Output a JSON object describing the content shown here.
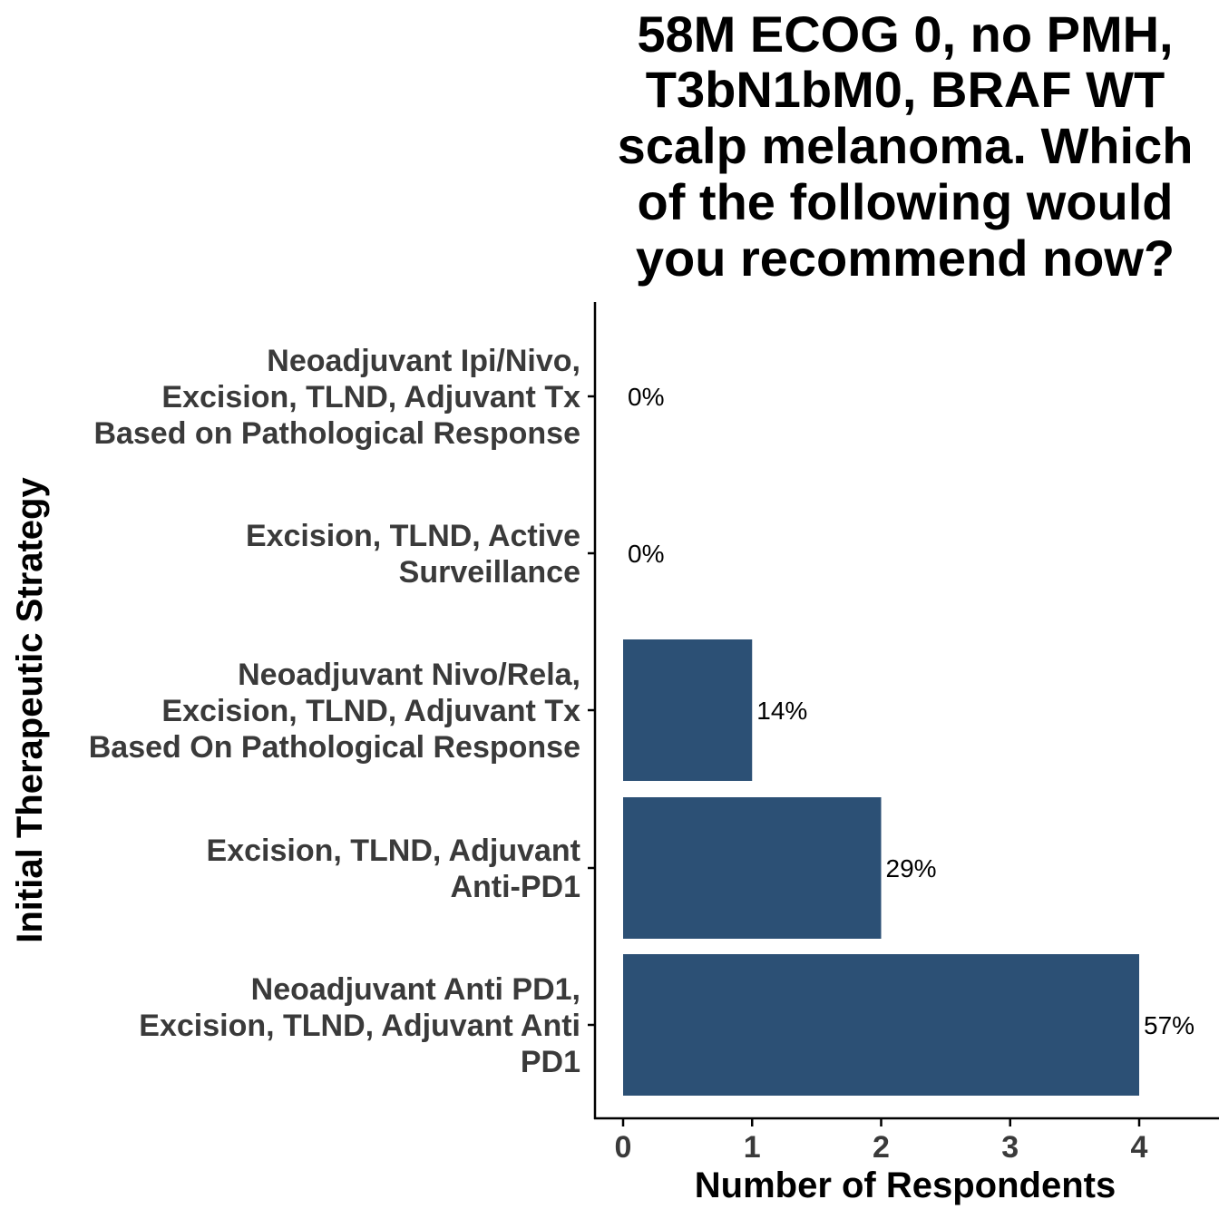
{
  "chart_data": {
    "type": "bar",
    "orientation": "horizontal",
    "title_lines": [
      "58M ECOG 0, no PMH,",
      "T3bN1bM0, BRAF WT",
      "scalp melanoma. Which",
      "of the following would",
      "you recommend now?"
    ],
    "xlabel": "Number of Respondents",
    "ylabel": "Initial Therapeutic Strategy",
    "xlim": [
      0,
      4.6
    ],
    "xticks": [
      "0",
      "1",
      "2",
      "3",
      "4"
    ],
    "categories": [
      [
        "Neoadjuvant Ipi/Nivo,",
        "Excision, TLND, Adjuvant Tx",
        "Based on Pathological Response"
      ],
      [
        "Excision, TLND, Active",
        "Surveillance"
      ],
      [
        "Neoadjuvant Nivo/Rela,",
        "Excision, TLND, Adjuvant Tx",
        "Based On Pathological Response"
      ],
      [
        "Excision, TLND, Adjuvant",
        "Anti-PD1"
      ],
      [
        "Neoadjuvant Anti PD1,",
        "Excision, TLND, Adjuvant Anti",
        "PD1"
      ]
    ],
    "values": [
      0,
      0,
      1,
      2,
      4
    ],
    "labels": [
      "0%",
      "0%",
      "14%",
      "29%",
      "57%"
    ],
    "bar_color": "#2c5075",
    "grid": false,
    "legend": "none"
  }
}
